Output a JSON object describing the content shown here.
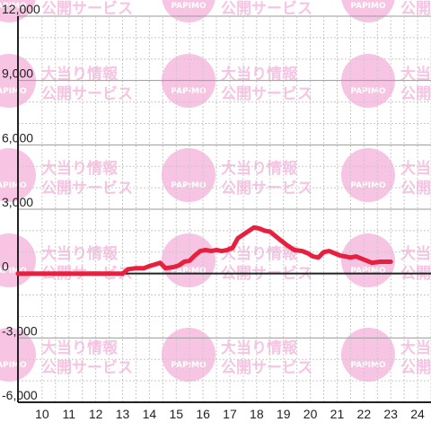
{
  "watermark": {
    "brand": "PAPIMO",
    "line1": "大当り情報",
    "line2": "公開サービス"
  },
  "colors": {
    "series": "#e8203f",
    "axis": "#222222",
    "grid_major": "#9a9a9a",
    "grid_minor": "#c8c8c8",
    "watermark": "#f7c4e3"
  },
  "chart_data": {
    "type": "line",
    "title": "",
    "xlabel": "",
    "ylabel": "",
    "xlim": [
      9.1,
      24.5
    ],
    "ylim": [
      -6000,
      12000
    ],
    "x_ticks": [
      10,
      11,
      12,
      13,
      14,
      15,
      16,
      17,
      18,
      19,
      20,
      21,
      22,
      23,
      24
    ],
    "x_tick_labels": [
      "10",
      "11",
      "12",
      "13",
      "14",
      "15",
      "16",
      "17",
      "18",
      "19",
      "20",
      "21",
      "22",
      "23",
      "24"
    ],
    "y_ticks": [
      -6000,
      -3000,
      0,
      3000,
      6000,
      9000,
      12000
    ],
    "y_tick_labels": [
      "-6,000",
      "-3,000",
      "0",
      "3,000",
      "6,000",
      "9,000",
      "12,000"
    ],
    "grid": "on",
    "series": [
      {
        "color": "#e8203f",
        "x": [
          9.1,
          10.0,
          11.0,
          12.0,
          13.0,
          13.2,
          13.5,
          13.8,
          14.0,
          14.2,
          14.4,
          14.6,
          14.9,
          15.1,
          15.3,
          15.5,
          15.7,
          15.9,
          16.1,
          16.3,
          16.5,
          16.7,
          16.9,
          17.1,
          17.3,
          17.6,
          17.9,
          18.1,
          18.3,
          18.5,
          18.8,
          19.1,
          19.4,
          19.7,
          19.9,
          20.1,
          20.3,
          20.5,
          20.7,
          20.9,
          21.1,
          21.3,
          21.5,
          21.7,
          21.9,
          22.1,
          22.3,
          22.6,
          22.9,
          23.0
        ],
        "values": [
          0,
          0,
          0,
          0,
          0,
          200,
          250,
          250,
          350,
          420,
          500,
          250,
          300,
          380,
          550,
          600,
          850,
          1050,
          1100,
          1050,
          1100,
          1050,
          1100,
          1200,
          1650,
          1900,
          2150,
          2100,
          2000,
          1950,
          1650,
          1350,
          1100,
          1050,
          950,
          800,
          750,
          1000,
          1050,
          950,
          850,
          800,
          750,
          800,
          700,
          600,
          500,
          550,
          550,
          550
        ]
      }
    ]
  }
}
